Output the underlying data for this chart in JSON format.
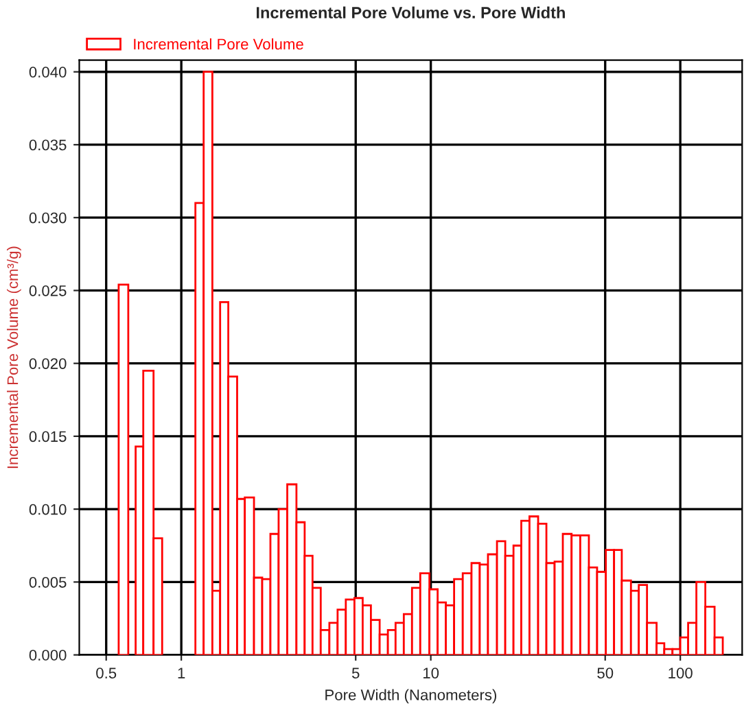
{
  "chart_data": {
    "type": "histogram",
    "title": "Incremental Pore Volume vs. Pore Width",
    "xlabel": "Pore Width (Nanometers)",
    "ylabel": "Incremental Pore Volume (cm³/g)",
    "log": "x",
    "grid": true,
    "legend": "top left",
    "bins": [
      0.561,
      0.613,
      0.656,
      0.704,
      0.774,
      0.838,
      1.139,
      1.229,
      1.332,
      1.431,
      1.543,
      1.674,
      1.797,
      1.956,
      2.11,
      2.276,
      2.455,
      2.659,
      2.894,
      3.122,
      3.357,
      3.621,
      3.922,
      4.231,
      4.564,
      4.943,
      5.333,
      5.753,
      6.237,
      6.73,
      7.224,
      7.795,
      8.409,
      9.073,
      9.874,
      10.65,
      11.49,
      12.4,
      13.43,
      14.56,
      15.71,
      16.95,
      18.42,
      19.88,
      21.45,
      23.05,
      24.86,
      26.93,
      29.06,
      31.35,
      33.82,
      36.67,
      39.72,
      43.01,
      46.4,
      50.3,
      54.27,
      58.27,
      63.42,
      68.17,
      73.55,
      80.35,
      86.26,
      93.05,
      100,
      107.5,
      116.0,
      126.0,
      137.2,
      148.0
    ],
    "series": [
      {
        "name": "Incremental Pore Volume",
        "color": "#ff0000",
        "values": [
          0.0254,
          null,
          0.0143,
          0.0195,
          0.008,
          null,
          0.031,
          0.04,
          0.0044,
          0.0242,
          0.0191,
          0.0107,
          0.0108,
          0.0053,
          0.0052,
          0.0083,
          0.01,
          0.0117,
          0.0091,
          0.0068,
          0.0046,
          0.0017,
          0.0022,
          0.0031,
          0.0038,
          0.0039,
          0.0034,
          0.0024,
          0.0014,
          0.0017,
          0.0022,
          0.0028,
          0.0046,
          0.0056,
          0.0045,
          0.0036,
          0.0034,
          0.0052,
          0.0056,
          0.0063,
          0.0062,
          0.0069,
          0.0078,
          0.0068,
          0.0075,
          0.0092,
          0.0095,
          0.009,
          0.0063,
          0.0064,
          0.0083,
          0.0082,
          0.0082,
          0.006,
          0.0057,
          0.0072,
          0.0072,
          0.0051,
          0.0044,
          0.0048,
          0.0022,
          0.0008,
          0.0004,
          0.0004,
          0.0012,
          0.0022,
          0.005,
          0.0033,
          0.0012
        ]
      }
    ],
    "xlim": [
      0.39,
      177
    ],
    "xticks": [
      0.5,
      1,
      5,
      10,
      50,
      100
    ],
    "ylim": [
      0,
      0.0408
    ],
    "yticks": [
      {
        "value": 0,
        "label": "0.000"
      },
      {
        "value": 0.005,
        "label": "0.005"
      },
      {
        "value": 0.01,
        "label": "0.010"
      },
      {
        "value": 0.015,
        "label": "0.015"
      },
      {
        "value": 0.02,
        "label": "0.020"
      },
      {
        "value": 0.025,
        "label": "0.025"
      },
      {
        "value": 0.03,
        "label": "0.030"
      },
      {
        "value": 0.035,
        "label": "0.035"
      },
      {
        "value": 0.04,
        "label": "0.040"
      }
    ]
  }
}
